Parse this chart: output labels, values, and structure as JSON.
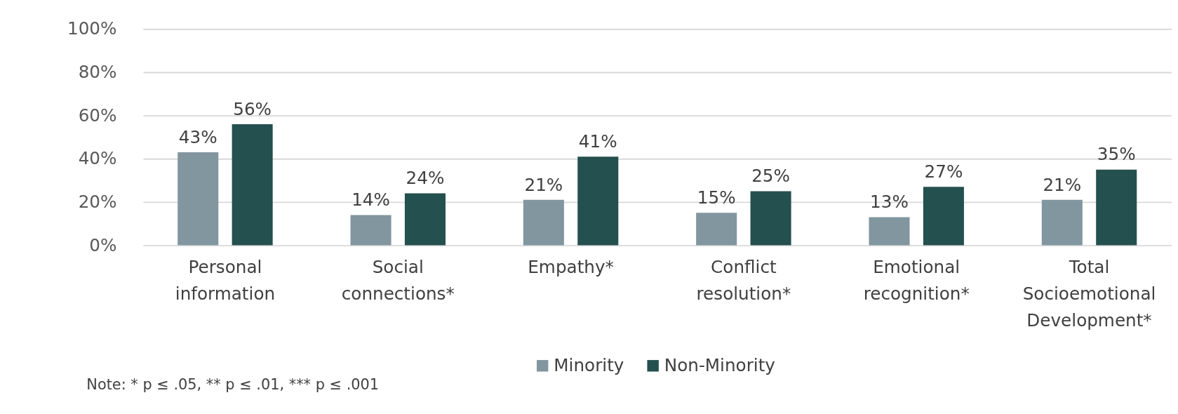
{
  "chart_data": {
    "type": "bar",
    "categories": [
      "Personal information",
      "Social connections*",
      "Empathy*",
      "Conflict resolution*",
      "Emotional recognition*",
      "Total Socioemotional Development*"
    ],
    "series": [
      {
        "name": "Minority",
        "color": "#8296a0",
        "values": [
          43,
          14,
          21,
          15,
          13,
          21
        ],
        "value_labels": [
          "43%",
          "14%",
          "21%",
          "15%",
          "13%",
          "21%"
        ]
      },
      {
        "name": "Non-Minority",
        "color": "#24504f",
        "values": [
          56,
          24,
          41,
          25,
          27,
          35
        ],
        "value_labels": [
          "56%",
          "24%",
          "41%",
          "25%",
          "27%",
          "35%"
        ]
      }
    ],
    "ylim": [
      0,
      100
    ],
    "yticks": [
      {
        "value": 0,
        "label": "0%"
      },
      {
        "value": 20,
        "label": "20%"
      },
      {
        "value": 40,
        "label": "40%"
      },
      {
        "value": 60,
        "label": "60%"
      },
      {
        "value": 80,
        "label": "80%"
      },
      {
        "value": 100,
        "label": "100%"
      }
    ],
    "grid": "y",
    "legend": "bottom",
    "annotations": [
      "Note: * p ≤ .05, ** p ≤ .01, *** p ≤ .001"
    ]
  }
}
